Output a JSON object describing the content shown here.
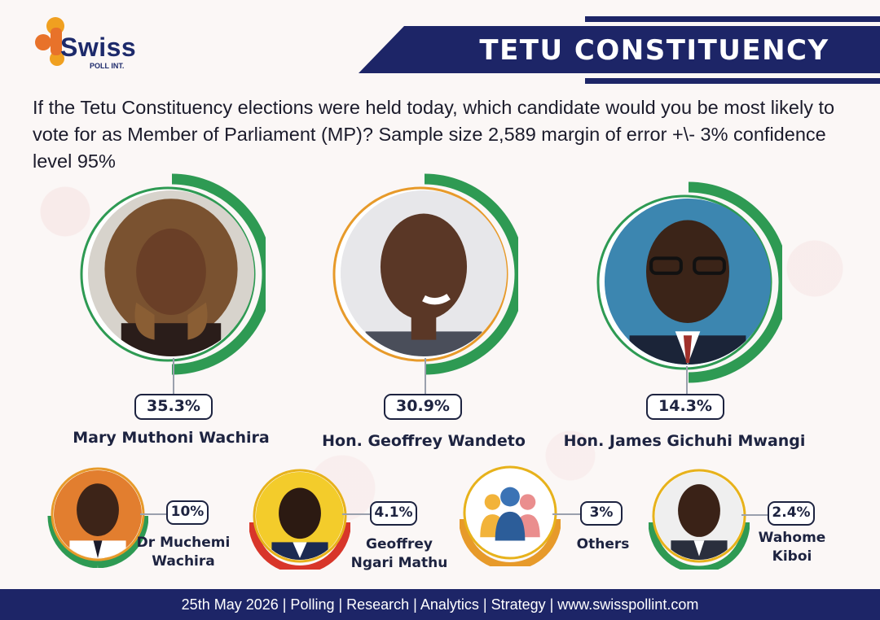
{
  "brand": {
    "name": "Swiss",
    "sub": "POLL INT."
  },
  "header": {
    "title": "TETU CONSTITUENCY"
  },
  "question": "If the Tetu Constituency elections were held today, which candidate would you be most likely to vote for as Member of Parliament (MP)? Sample size 2,589 margin of error +\\- 3% confidence level 95%",
  "colors": {
    "navy": "#1d2567",
    "green": "#2e9a53",
    "orange": "#e79a2a",
    "red": "#d8362a",
    "yellow": "#e7b21b",
    "gray": "#9aa0ad"
  },
  "chart_data": {
    "type": "bar",
    "unit": "%",
    "categories": [
      "Mary Muthoni Wachira",
      "Hon. Geoffrey Wandeto",
      "Hon. James Gichuhi Mwangi",
      "Dr Muchemi Wachira",
      "Geoffrey Ngari Mathu",
      "Others",
      "Wahome Kiboi"
    ],
    "values": [
      35.3,
      30.9,
      14.3,
      10,
      4.1,
      3,
      2.4
    ],
    "labels": [
      "35.3%",
      "30.9%",
      "14.3%",
      "10%",
      "4.1%",
      "3%",
      "2.4%"
    ]
  },
  "candidates": [
    {
      "name": "Mary Muthoni Wachira",
      "pct": "35.3%",
      "icon": "woman-portrait-icon"
    },
    {
      "name": "Hon. Geoffrey Wandeto",
      "pct": "30.9%",
      "icon": "man-portrait-icon"
    },
    {
      "name": "Hon. James Gichuhi Mwangi",
      "pct": "14.3%",
      "icon": "man-glasses-portrait-icon"
    },
    {
      "name_line1": "Dr Muchemi",
      "name_line2": "Wachira",
      "pct": "10%",
      "icon": "man-portrait-icon"
    },
    {
      "name_line1": "Geoffrey",
      "name_line2": "Ngari Mathu",
      "pct": "4.1%",
      "icon": "man-portrait-icon"
    },
    {
      "name": "Others",
      "pct": "3%",
      "icon": "group-people-icon"
    },
    {
      "name_line1": "Wahome",
      "name_line2": "Kiboi",
      "pct": "2.4%",
      "icon": "man-portrait-icon"
    }
  ],
  "footer": "25th May 2026 | Polling | Research | Analytics | Strategy | www.swisspollint.com"
}
